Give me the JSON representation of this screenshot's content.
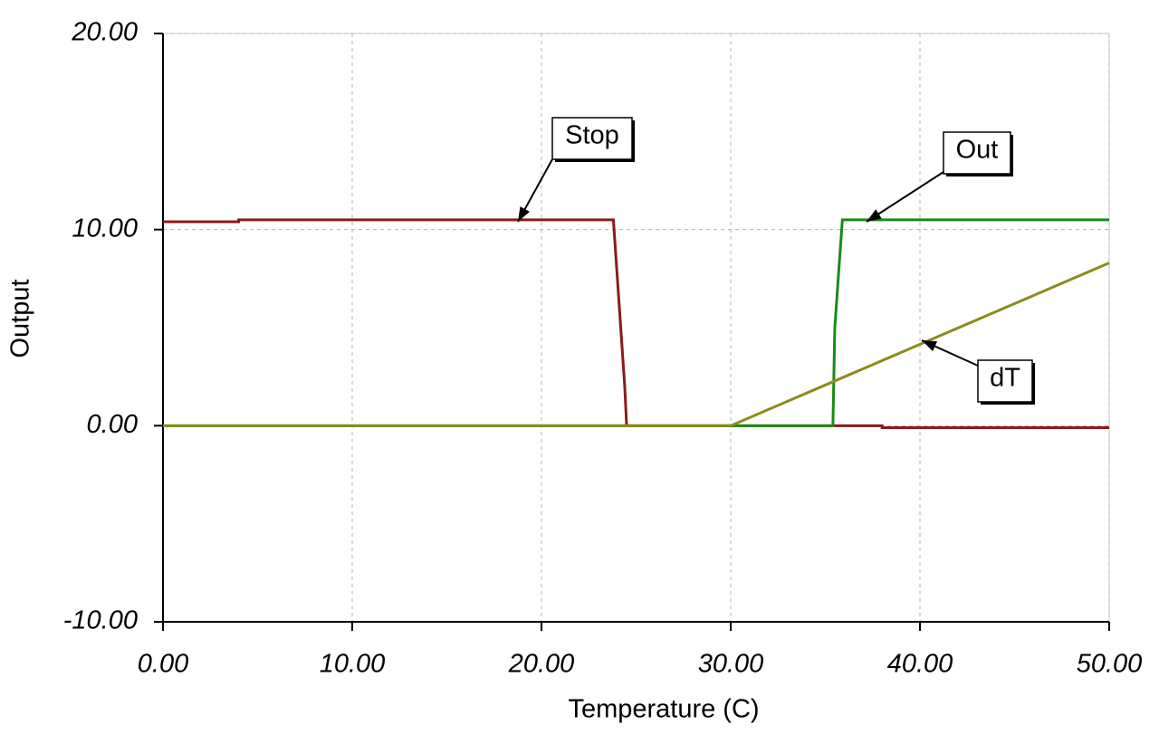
{
  "chart_data": {
    "type": "line",
    "xlabel": "Temperature (C)",
    "ylabel": "Output",
    "xlim": [
      0,
      50
    ],
    "ylim": [
      -10,
      20
    ],
    "xticks": [
      {
        "value": 0,
        "label": "0.00"
      },
      {
        "value": 10,
        "label": "10.00"
      },
      {
        "value": 20,
        "label": "20.00"
      },
      {
        "value": 30,
        "label": "30.00"
      },
      {
        "value": 40,
        "label": "40.00"
      },
      {
        "value": 50,
        "label": "50.00"
      }
    ],
    "yticks": [
      {
        "value": -10,
        "label": "-10.00"
      },
      {
        "value": 0,
        "label": "0.00"
      },
      {
        "value": 10,
        "label": "10.00"
      },
      {
        "value": 20,
        "label": "20.00"
      }
    ],
    "grid": true,
    "series": [
      {
        "name": "Stop",
        "color": "#8b1a1a",
        "x": [
          0,
          4,
          4,
          23.8,
          24.4,
          24.5,
          38,
          38,
          50
        ],
        "values": [
          10.4,
          10.4,
          10.5,
          10.5,
          2,
          0,
          0,
          -0.1,
          -0.1
        ]
      },
      {
        "name": "Out",
        "color": "#1a8a1a",
        "x": [
          0,
          35.4,
          35.5,
          35.9,
          50
        ],
        "values": [
          0,
          0,
          5,
          10.5,
          10.5
        ]
      },
      {
        "name": "dT",
        "color": "#8c8c1a",
        "x": [
          0,
          30,
          50
        ],
        "values": [
          0,
          0,
          8.3
        ]
      }
    ]
  }
}
